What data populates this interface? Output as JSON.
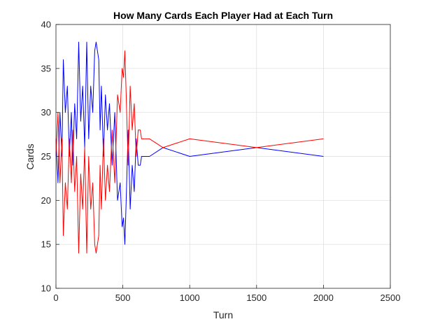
{
  "chart_data": {
    "type": "line",
    "title": "How Many Cards Each Player Had at Each Turn",
    "xlabel": "Turn",
    "ylabel": "Cards",
    "xlim": [
      0,
      2500
    ],
    "ylim": [
      10,
      40
    ],
    "xticks": [
      0,
      500,
      1000,
      1500,
      2000,
      2500
    ],
    "yticks": [
      10,
      15,
      20,
      25,
      30,
      35,
      40
    ],
    "grid": true,
    "series": [
      {
        "color": "#0000ff",
        "x": [
          0,
          15,
          30,
          45,
          55,
          70,
          85,
          100,
          115,
          125,
          140,
          155,
          170,
          185,
          200,
          215,
          230,
          245,
          260,
          275,
          290,
          300,
          310,
          320,
          330,
          340,
          355,
          370,
          385,
          400,
          420,
          440,
          460,
          480,
          495,
          505,
          515,
          525,
          540,
          555,
          570,
          585,
          600,
          615,
          630,
          640,
          700,
          800,
          1000,
          1500,
          2000
        ],
        "values": [
          27,
          22,
          30,
          25,
          36,
          30,
          33,
          25,
          30,
          24,
          31,
          27,
          38,
          29,
          33,
          26,
          38,
          27,
          33,
          30,
          37,
          38,
          37,
          36,
          28,
          33,
          25,
          32,
          28,
          31,
          24,
          30,
          20,
          22,
          17,
          18,
          15,
          20,
          28,
          19,
          24,
          21,
          27,
          24,
          24,
          25,
          25,
          26,
          25,
          26,
          25
        ]
      },
      {
        "color": "#ff0000",
        "x": [
          0,
          15,
          30,
          45,
          55,
          70,
          85,
          100,
          115,
          125,
          140,
          155,
          170,
          185,
          200,
          215,
          230,
          245,
          260,
          275,
          290,
          300,
          310,
          320,
          330,
          340,
          355,
          370,
          385,
          400,
          420,
          440,
          460,
          480,
          495,
          505,
          515,
          525,
          540,
          555,
          570,
          585,
          600,
          615,
          630,
          640,
          700,
          800,
          1000,
          1500,
          2000
        ],
        "values": [
          25,
          30,
          22,
          27,
          16,
          22,
          19,
          27,
          22,
          28,
          21,
          25,
          14,
          23,
          19,
          26,
          14,
          25,
          19,
          22,
          15,
          14,
          15,
          16,
          24,
          19,
          27,
          20,
          24,
          21,
          28,
          22,
          32,
          30,
          35,
          34,
          37,
          32,
          24,
          33,
          28,
          31,
          25,
          28,
          28,
          27,
          27,
          26,
          27,
          26,
          27
        ]
      }
    ]
  }
}
